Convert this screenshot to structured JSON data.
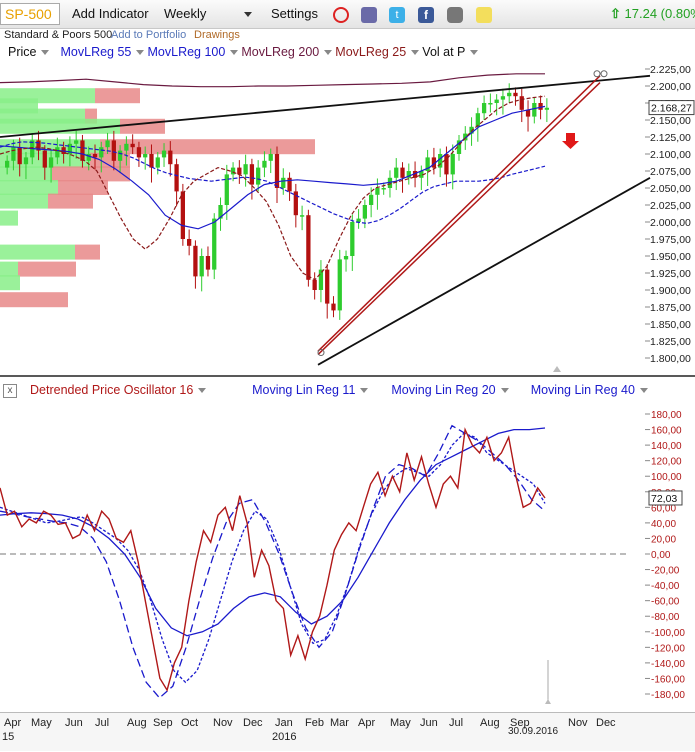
{
  "toolbar": {
    "symbol": "SP-500",
    "add_indicator": "Add Indicator",
    "period": "Weekly",
    "settings": "Settings",
    "change": "17.24 (0.80%)",
    "icons": [
      "alarm-clock-icon",
      "notes-icon",
      "twitter-icon",
      "facebook-icon",
      "camera-icon",
      "sticky-note-icon"
    ]
  },
  "subbar": {
    "name": "Standard & Poors 500",
    "add_to_portfolio": "Add to Portfolio",
    "drawings": "Drawings"
  },
  "colors": {
    "up": "#2ecc2e",
    "down": "#b31010",
    "indicator_red": "#b01818",
    "indicator_blue": "#1a1acc",
    "ma_purple": "#6a1a40",
    "profile_green": "#88ee88",
    "profile_red": "#e88888"
  },
  "price_legend": [
    {
      "label": "Price",
      "color": "#111"
    },
    {
      "label": "MovLReg 55",
      "color": "#1a1acc"
    },
    {
      "label": "MovLReg 100",
      "color": "#1a1acc"
    },
    {
      "label": "MovLReg 200",
      "color": "#6a1a40"
    },
    {
      "label": "MovLReg 25",
      "color": "#8b1a1a"
    },
    {
      "label": "Vol at P",
      "color": "#111"
    }
  ],
  "osc_legend": [
    {
      "label": "Detrended Price Oscillator 16",
      "color": "#b01818"
    },
    {
      "label": "Moving Lin Reg 11",
      "color": "#1a1acc"
    },
    {
      "label": "Moving Lin Reg 20",
      "color": "#1a1acc"
    },
    {
      "label": "Moving Lin Reg 40",
      "color": "#1a1acc"
    }
  ],
  "chart_data": [
    {
      "type": "line",
      "title": "SP-500",
      "ylim": [
        1800,
        2225
      ],
      "y_ticks": [
        "2.225,00",
        "2.200,00",
        "2.175,00",
        "2.150,00",
        "2.125,00",
        "2.100,00",
        "2.075,00",
        "2.050,00",
        "2.025,00",
        "2.000,00",
        "1.975,00",
        "1.950,00",
        "1.925,00",
        "1.900,00",
        "1.875,00",
        "1.850,00",
        "1.825,00",
        "1.800,00"
      ],
      "last_value": "2.168,27",
      "x_labels": [
        "Apr",
        "May",
        "Jun",
        "Jul",
        "Aug",
        "Sep",
        "Oct",
        "Nov",
        "Dec",
        "Jan",
        "Feb",
        "Mar",
        "Apr",
        "May",
        "Jun",
        "Jul",
        "Aug",
        "Sep",
        "Nov",
        "Dec"
      ],
      "year_labels": [
        "15",
        "2016"
      ],
      "date_marker": "30.09.2016",
      "series": [
        {
          "name": "Price",
          "closes": [
            2090,
            2110,
            2085,
            2095,
            2120,
            2105,
            2080,
            2095,
            2110,
            2100,
            2115,
            2120,
            2090,
            2100,
            2095,
            2110,
            2120,
            2090,
            2105,
            2115,
            2110,
            2095,
            2100,
            2080,
            2095,
            2105,
            2085,
            2045,
            1975,
            1965,
            1920,
            1950,
            1930,
            2005,
            2025,
            2070,
            2080,
            2070,
            2085,
            2055,
            2080,
            2090,
            2100,
            2050,
            2065,
            2045,
            2010,
            2010,
            1915,
            1900,
            1930,
            1880,
            1870,
            1945,
            1950,
            2000,
            2005,
            2025,
            2040,
            2050,
            2050,
            2065,
            2080,
            2065,
            2075,
            2065,
            2075,
            2095,
            2080,
            2100,
            2070,
            2100,
            2120,
            2130,
            2140,
            2160,
            2175,
            2175,
            2180,
            2185,
            2190,
            2185,
            2165,
            2155,
            2175,
            2165,
            2168
          ]
        },
        {
          "name": "MovLReg 55",
          "values": [
            2110,
            2115,
            2118,
            2117,
            2116,
            2114,
            2112,
            2110,
            2108,
            2106,
            2104,
            2100,
            2094,
            2086,
            2078,
            2072,
            2068,
            2064,
            2062,
            2060,
            2062,
            2064,
            2066,
            2064,
            2060,
            2052,
            2044,
            2036,
            2028,
            2020,
            2012,
            2006,
            2000,
            1998,
            2002,
            2010,
            2020,
            2032,
            2044,
            2052,
            2056,
            2060,
            2060,
            2060,
            2062,
            2065,
            2070,
            2074,
            2078,
            2082
          ]
        },
        {
          "name": "MovLReg 100",
          "values": [
            2112,
            2110,
            2108,
            2106,
            2104,
            2100,
            2092,
            2078,
            2060,
            2040,
            2010,
            1995,
            1990,
            2000,
            2020,
            2040,
            2055,
            2060,
            2062,
            2060,
            2058,
            2056,
            2054,
            2056,
            2060,
            2070,
            2080,
            2100,
            2120,
            2140,
            2150,
            2160,
            2165,
            2170
          ]
        },
        {
          "name": "MovLReg 200",
          "values": [
            2205,
            2206,
            2208,
            2210,
            2206,
            2202,
            2200,
            2199,
            2199,
            2200,
            2200,
            2201,
            2202,
            2203,
            2204,
            2206,
            2212,
            2216,
            2218,
            2218
          ]
        },
        {
          "name": "MovLReg 25",
          "values": [
            2100,
            2105,
            2108,
            2110,
            2108,
            2104,
            2098,
            2090,
            2075,
            2040,
            2005,
            1975,
            1960,
            1975,
            2005,
            2040,
            2060,
            2070,
            2080,
            2075,
            2068,
            2050,
            2030,
            1995,
            1950,
            1925,
            1915,
            1935,
            1975,
            2010,
            2035,
            2050,
            2055,
            2060,
            2065,
            2070,
            2080,
            2095,
            2115,
            2135,
            2150,
            2165,
            2175,
            2180,
            2183,
            2185
          ]
        }
      ],
      "volume_profile": [
        {
          "price": 2185,
          "buy": 95,
          "sell": 45
        },
        {
          "price": 2170,
          "buy": 38,
          "sell": 0
        },
        {
          "price": 2155,
          "buy": 85,
          "sell": 12
        },
        {
          "price": 2140,
          "buy": 120,
          "sell": 45
        },
        {
          "price": 2110,
          "buy": 100,
          "sell": 215
        },
        {
          "price": 2090,
          "buy": 90,
          "sell": 40
        },
        {
          "price": 2070,
          "buy": 52,
          "sell": 78
        },
        {
          "price": 2050,
          "buy": 58,
          "sell": 50
        },
        {
          "price": 2030,
          "buy": 48,
          "sell": 45
        },
        {
          "price": 2005,
          "buy": 18,
          "sell": 0
        },
        {
          "price": 1955,
          "buy": 75,
          "sell": 25
        },
        {
          "price": 1930,
          "buy": 18,
          "sell": 58
        },
        {
          "price": 1910,
          "buy": 20,
          "sell": 0
        },
        {
          "price": 1885,
          "buy": 0,
          "sell": 68
        }
      ],
      "trendlines": [
        {
          "name": "upper-resistance",
          "from": [
            "Apr 2015",
            2125
          ],
          "to": [
            "Dec 2016",
            2215
          ]
        },
        {
          "name": "lower-support",
          "from": [
            "Feb 2016",
            1790
          ],
          "to": [
            "Dec 2016",
            2065
          ]
        },
        {
          "name": "channel-1",
          "from": [
            "Feb 2016",
            1810
          ],
          "to": [
            "Nov 2016",
            2215
          ]
        },
        {
          "name": "channel-2",
          "from": [
            "Feb 2016",
            1805
          ],
          "to": [
            "Nov 2016",
            2205
          ]
        }
      ]
    },
    {
      "type": "line",
      "title": "Detrended Price Oscillator 16",
      "ylim": [
        -180,
        180
      ],
      "y_ticks": [
        "180,00",
        "160,00",
        "140,00",
        "120,00",
        "100,00",
        "80,00",
        "60,00",
        "40,00",
        "20,00",
        "0,00",
        "-20,00",
        "-40,00",
        "-60,00",
        "-80,00",
        "-100,00",
        "-120,00",
        "-140,00",
        "-160,00",
        "-180,00"
      ],
      "last_value": "72,03",
      "series": [
        {
          "name": "Detrended Price Oscillator 16",
          "values": [
            85,
            50,
            55,
            35,
            45,
            40,
            55,
            50,
            38,
            40,
            20,
            25,
            50,
            30,
            55,
            45,
            20,
            15,
            30,
            -10,
            -60,
            -110,
            -160,
            -175,
            -140,
            -120,
            -60,
            -10,
            30,
            15,
            50,
            60,
            30,
            75,
            40,
            -30,
            5,
            -15,
            -60,
            -70,
            -130,
            -105,
            -135,
            -100,
            -80,
            -40,
            5,
            25,
            40,
            30,
            60,
            90,
            105,
            75,
            100,
            80,
            130,
            95,
            125,
            90,
            60,
            90,
            100,
            85,
            160,
            140,
            130,
            150,
            120,
            130,
            150,
            100,
            60,
            65,
            85,
            72
          ]
        },
        {
          "name": "Moving Lin Reg 11",
          "values": [
            60,
            55,
            50,
            45,
            40,
            42,
            45,
            48,
            40,
            30,
            20,
            5,
            -20,
            -60,
            -110,
            -150,
            -165,
            -150,
            -110,
            -60,
            -10,
            30,
            55,
            45,
            10,
            -40,
            -90,
            -115,
            -110,
            -80,
            -40,
            10,
            50,
            80,
            100,
            110,
            105,
            100,
            115,
            140,
            155,
            150,
            130,
            120,
            110,
            100,
            90,
            65
          ]
        },
        {
          "name": "Moving Lin Reg 20",
          "values": [
            55,
            52,
            48,
            45,
            42,
            40,
            35,
            20,
            -10,
            -60,
            -120,
            -165,
            -185,
            -170,
            -120,
            -60,
            -5,
            40,
            65,
            70,
            40,
            0,
            -50,
            -95,
            -120,
            -100,
            -50,
            5,
            55,
            100,
            115,
            110,
            100,
            130,
            165,
            155,
            145,
            130,
            115,
            95,
            70,
            55
          ]
        },
        {
          "name": "Moving Lin Reg 40",
          "values": [
            50,
            52,
            53,
            52,
            50,
            45,
            35,
            20,
            0,
            -30,
            -70,
            -95,
            -105,
            -100,
            -90,
            -70,
            -55,
            -50,
            -55,
            -75,
            -90,
            -80,
            -60,
            -30,
            5,
            40,
            70,
            95,
            115,
            125,
            135,
            145,
            155,
            160,
            160,
            162
          ]
        }
      ]
    }
  ]
}
